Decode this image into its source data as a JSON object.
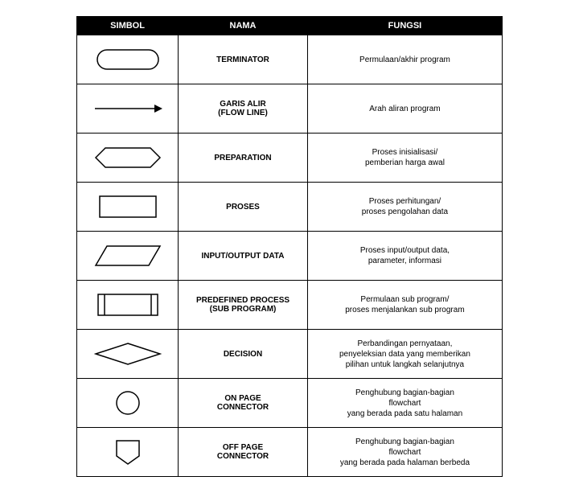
{
  "headers": {
    "symbol": "SIMBOL",
    "name": "NAMA",
    "func": "FUNGSI"
  },
  "rows": [
    {
      "name": "TERMINATOR",
      "func": "Permulaan/akhir program",
      "shape": "terminator"
    },
    {
      "name": "GARIS ALIR\n(FLOW LINE)",
      "func": "Arah aliran program",
      "shape": "arrow"
    },
    {
      "name": "PREPARATION",
      "func": "Proses inisialisasi/\npemberian harga awal",
      "shape": "hexagon"
    },
    {
      "name": "PROSES",
      "func": "Proses perhitungan/\nproses pengolahan data",
      "shape": "rect"
    },
    {
      "name": "INPUT/OUTPUT DATA",
      "func": "Proses input/output data,\nparameter, informasi",
      "shape": "parallelogram"
    },
    {
      "name": "PREDEFINED PROCESS\n(SUB PROGRAM)",
      "func": "Permulaan sub program/\nproses menjalankan sub program",
      "shape": "predefined"
    },
    {
      "name": "DECISION",
      "func": "Perbandingan pernyataan,\npenyeleksian data yang memberikan\npilihan untuk langkah selanjutnya",
      "shape": "diamond"
    },
    {
      "name": "ON PAGE\nCONNECTOR",
      "func": "Penghubung bagian-bagian\nflowchart\nyang berada pada satu halaman",
      "shape": "circle"
    },
    {
      "name": "OFF PAGE\nCONNECTOR",
      "func": "Penghubung bagian-bagian\nflowchart\nyang berada pada halaman berbeda",
      "shape": "offpage"
    }
  ],
  "style": {
    "stroke": "#000000",
    "fill": "#ffffff",
    "stroke_width": 1.5,
    "header_bg": "#000000",
    "header_fg": "#ffffff",
    "font_family": "Verdana, Arial, sans-serif"
  }
}
